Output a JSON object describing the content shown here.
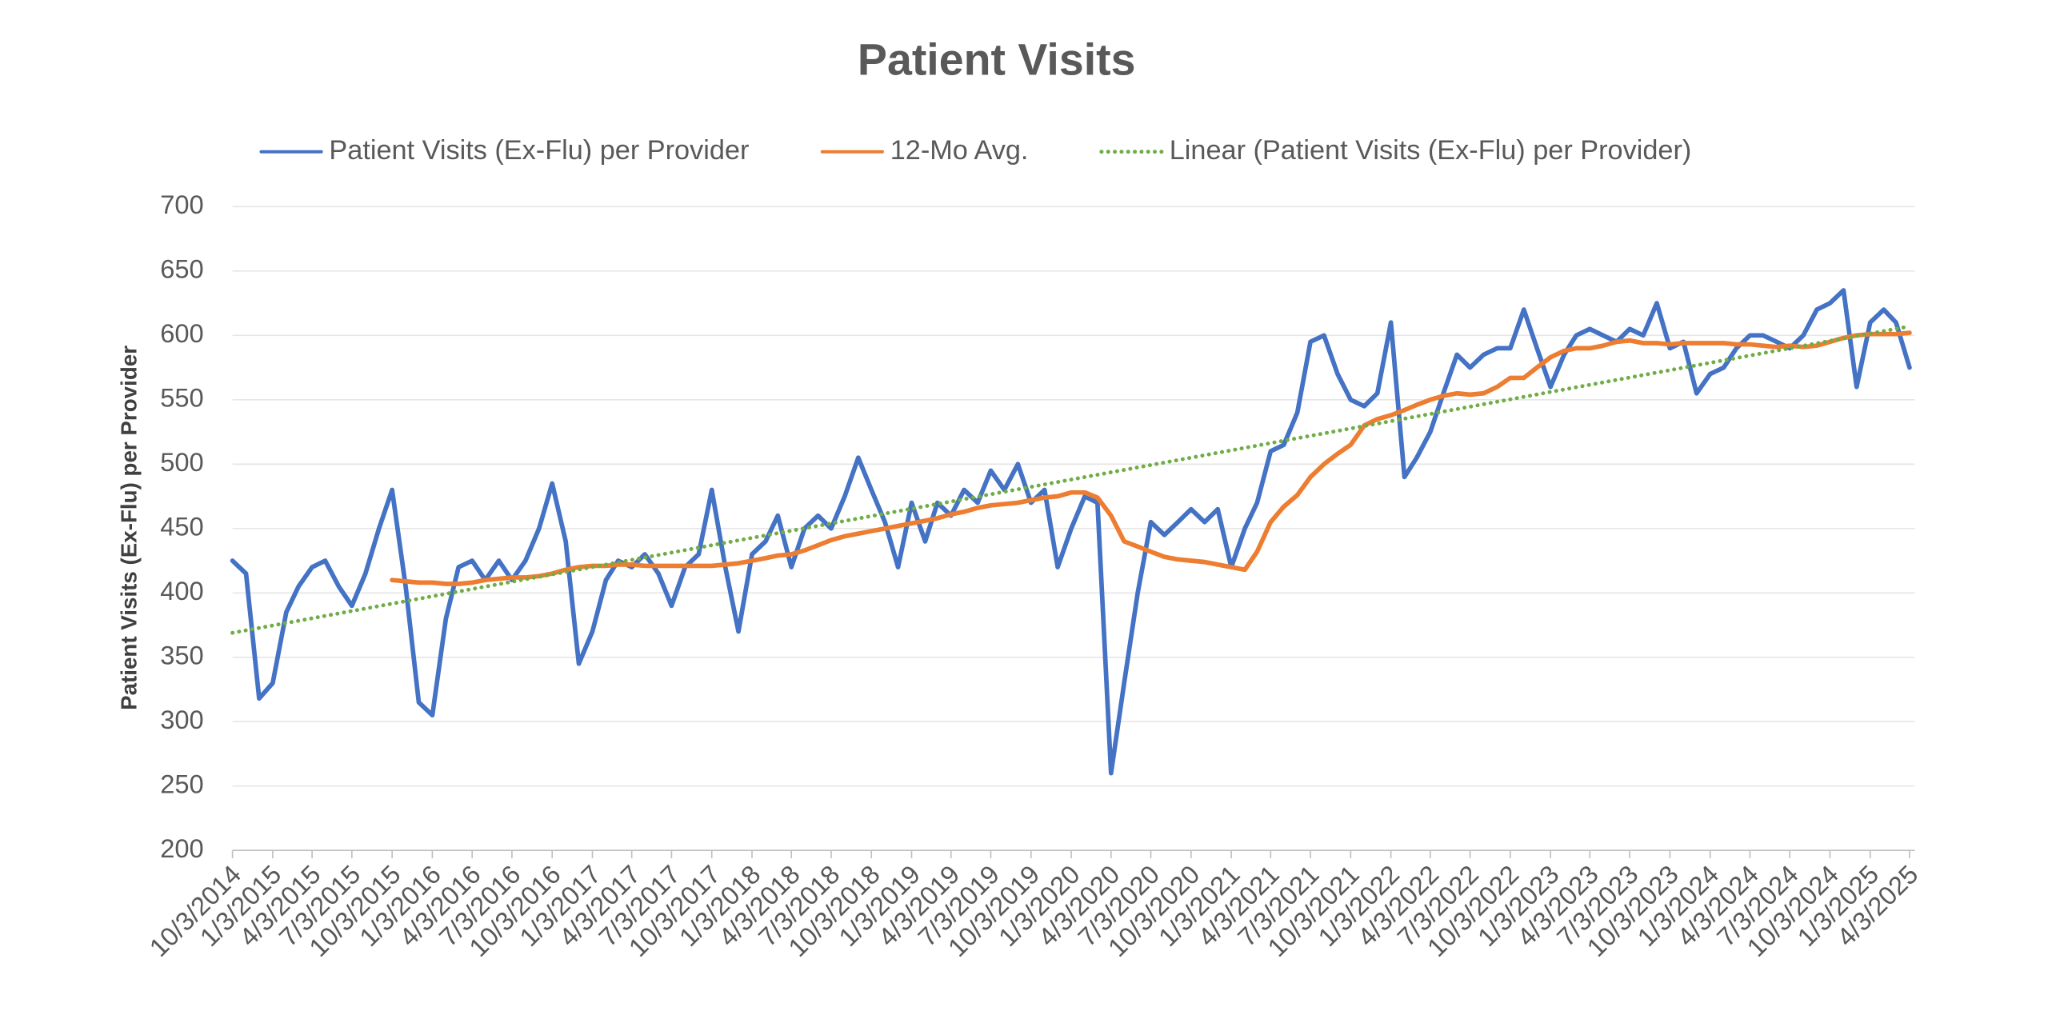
{
  "chart_data": {
    "type": "line",
    "title": "Patient Visits",
    "y_label": "Patient Visits (Ex-Flu) per Provider",
    "legend": "top",
    "grid": true,
    "ylim": [
      200,
      700
    ],
    "yticks": [
      200,
      250,
      300,
      350,
      400,
      450,
      500,
      550,
      600,
      650,
      700
    ],
    "xlim": [
      "10/3/2014",
      "4/3/2025"
    ],
    "xticks": [
      "10/3/2014",
      "1/3/2015",
      "4/3/2015",
      "7/3/2015",
      "10/3/2015",
      "1/3/2016",
      "4/3/2016",
      "7/3/2016",
      "10/3/2016",
      "1/3/2017",
      "4/3/2017",
      "7/3/2017",
      "10/3/2017",
      "1/3/2018",
      "4/3/2018",
      "7/3/2018",
      "10/3/2018",
      "1/3/2019",
      "4/3/2019",
      "7/3/2019",
      "10/3/2019",
      "1/3/2020",
      "4/3/2020",
      "7/3/2020",
      "10/3/2020",
      "1/3/2021",
      "4/3/2021",
      "7/3/2021",
      "10/3/2021",
      "1/3/2022",
      "4/3/2022",
      "7/3/2022",
      "10/3/2022",
      "1/3/2023",
      "4/3/2023",
      "7/3/2023",
      "10/3/2023",
      "1/3/2024",
      "4/3/2024",
      "7/3/2024",
      "10/3/2024",
      "1/3/2025",
      "4/3/2025"
    ],
    "x": [
      "10/3/2014",
      "11/3/2014",
      "12/3/2014",
      "1/3/2015",
      "2/3/2015",
      "3/3/2015",
      "4/3/2015",
      "5/3/2015",
      "6/3/2015",
      "7/3/2015",
      "8/3/2015",
      "9/3/2015",
      "10/3/2015",
      "11/3/2015",
      "12/3/2015",
      "1/3/2016",
      "2/3/2016",
      "3/3/2016",
      "4/3/2016",
      "5/3/2016",
      "6/3/2016",
      "7/3/2016",
      "8/3/2016",
      "9/3/2016",
      "10/3/2016",
      "11/3/2016",
      "12/3/2016",
      "1/3/2017",
      "2/3/2017",
      "3/3/2017",
      "4/3/2017",
      "5/3/2017",
      "6/3/2017",
      "7/3/2017",
      "8/3/2017",
      "9/3/2017",
      "10/3/2017",
      "11/3/2017",
      "12/3/2017",
      "1/3/2018",
      "2/3/2018",
      "3/3/2018",
      "4/3/2018",
      "5/3/2018",
      "6/3/2018",
      "7/3/2018",
      "8/3/2018",
      "9/3/2018",
      "10/3/2018",
      "11/3/2018",
      "12/3/2018",
      "1/3/2019",
      "2/3/2019",
      "3/3/2019",
      "4/3/2019",
      "5/3/2019",
      "6/3/2019",
      "7/3/2019",
      "8/3/2019",
      "9/3/2019",
      "10/3/2019",
      "11/3/2019",
      "12/3/2019",
      "1/3/2020",
      "2/3/2020",
      "3/3/2020",
      "4/3/2020",
      "5/3/2020",
      "6/3/2020",
      "7/3/2020",
      "8/3/2020",
      "9/3/2020",
      "10/3/2020",
      "11/3/2020",
      "12/3/2020",
      "1/3/2021",
      "2/3/2021",
      "3/3/2021",
      "4/3/2021",
      "5/3/2021",
      "6/3/2021",
      "7/3/2021",
      "8/3/2021",
      "9/3/2021",
      "10/3/2021",
      "11/3/2021",
      "12/3/2021",
      "1/3/2022",
      "2/3/2022",
      "3/3/2022",
      "4/3/2022",
      "5/3/2022",
      "6/3/2022",
      "7/3/2022",
      "8/3/2022",
      "9/3/2022",
      "10/3/2022",
      "11/3/2022",
      "12/3/2022",
      "1/3/2023",
      "2/3/2023",
      "3/3/2023",
      "4/3/2023",
      "5/3/2023",
      "6/3/2023",
      "7/3/2023",
      "8/3/2023",
      "9/3/2023",
      "10/3/2023",
      "11/3/2023",
      "12/3/2023",
      "1/3/2024",
      "2/3/2024",
      "3/3/2024",
      "4/3/2024",
      "5/3/2024",
      "6/3/2024",
      "7/3/2024",
      "8/3/2024",
      "9/3/2024",
      "10/3/2024",
      "11/3/2024",
      "12/3/2024",
      "1/3/2025",
      "2/3/2025",
      "3/3/2025",
      "4/3/2025"
    ],
    "series": [
      {
        "name": "Patient Visits (Ex-Flu) per Provider",
        "color": "#4472c4",
        "style": "solid",
        "values": [
          425,
          415,
          318,
          330,
          385,
          405,
          420,
          425,
          405,
          390,
          415,
          450,
          480,
          405,
          315,
          305,
          380,
          420,
          425,
          410,
          425,
          410,
          425,
          450,
          485,
          440,
          345,
          370,
          410,
          425,
          420,
          430,
          415,
          390,
          420,
          430,
          480,
          420,
          370,
          430,
          440,
          460,
          420,
          450,
          460,
          450,
          475,
          505,
          480,
          455,
          420,
          470,
          440,
          470,
          460,
          480,
          470,
          495,
          480,
          500,
          470,
          480,
          420,
          450,
          475,
          470,
          260,
          330,
          400,
          455,
          445,
          455,
          465,
          455,
          465,
          420,
          450,
          470,
          510,
          515,
          540,
          595,
          600,
          570,
          550,
          545,
          555,
          610,
          490,
          505,
          525,
          555,
          585,
          575,
          585,
          590,
          590,
          620,
          590,
          560,
          585,
          600,
          605,
          600,
          595,
          605,
          600,
          625,
          590,
          595,
          555,
          570,
          575,
          590,
          600,
          600,
          595,
          590,
          600,
          620,
          625,
          635,
          560,
          610,
          620,
          610,
          575
        ]
      },
      {
        "name": "12-Mo Avg.",
        "color": "#ed7d31",
        "style": "solid",
        "values": [
          null,
          null,
          null,
          null,
          null,
          null,
          null,
          null,
          null,
          null,
          null,
          null,
          410,
          409,
          408,
          408,
          407,
          407,
          408,
          410,
          411,
          412,
          412,
          413,
          415,
          418,
          420,
          421,
          421,
          422,
          422,
          421,
          421,
          421,
          421,
          421,
          421,
          422,
          423,
          425,
          427,
          429,
          430,
          433,
          437,
          441,
          444,
          446,
          448,
          450,
          452,
          454,
          456,
          458,
          461,
          463,
          466,
          468,
          469,
          470,
          472,
          474,
          475,
          478,
          478,
          474,
          460,
          440,
          436,
          432,
          428,
          426,
          425,
          424,
          422,
          420,
          418,
          432,
          455,
          467,
          476,
          490,
          500,
          508,
          515,
          530,
          535,
          538,
          542,
          546,
          550,
          553,
          555,
          554,
          555,
          560,
          567,
          567,
          575,
          583,
          588,
          590,
          590,
          592,
          595,
          596,
          594,
          594,
          593,
          594,
          594,
          594,
          594,
          593,
          593,
          592,
          591,
          592,
          591,
          592,
          595,
          598,
          600,
          601,
          601,
          601,
          602
        ]
      },
      {
        "name": "Linear (Patient Visits (Ex-Flu) per Provider)",
        "color": "#70ad47",
        "style": "dotted",
        "x": [
          "10/3/2014",
          "4/3/2025"
        ],
        "values": [
          369,
          607
        ]
      }
    ]
  }
}
